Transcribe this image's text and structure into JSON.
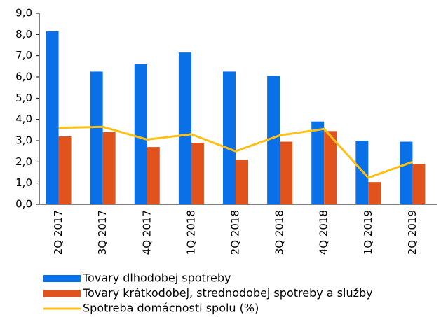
{
  "chart_data": {
    "type": "bar",
    "categories": [
      "2Q 2017",
      "3Q 2017",
      "4Q 2017",
      "1Q 2018",
      "2Q 2018",
      "3Q 2018",
      "4Q 2018",
      "1Q 2019",
      "2Q 2019"
    ],
    "series": [
      {
        "name": "Tovary dlhodobej spotreby",
        "color": "#0a70e8",
        "type": "bar",
        "values": [
          8.15,
          6.25,
          6.6,
          7.15,
          6.25,
          6.05,
          3.9,
          3.0,
          2.95
        ]
      },
      {
        "name": "Tovary krátkodobej, strednodobej spotreby a služby",
        "color": "#e0531c",
        "type": "bar",
        "values": [
          3.2,
          3.4,
          2.7,
          2.9,
          2.1,
          2.95,
          3.45,
          1.05,
          1.9
        ]
      },
      {
        "name": "Spotreba domácnosti spolu (%)",
        "color": "#ffc015",
        "type": "line",
        "values": [
          3.6,
          3.65,
          3.05,
          3.3,
          2.5,
          3.25,
          3.55,
          1.25,
          2.0
        ]
      }
    ],
    "ylim": [
      0,
      9
    ],
    "yticks": [
      {
        "value": 0,
        "label": "0,0"
      },
      {
        "value": 1,
        "label": "1,0"
      },
      {
        "value": 2,
        "label": "2,0"
      },
      {
        "value": 3,
        "label": "3,0"
      },
      {
        "value": 4,
        "label": "4,0"
      },
      {
        "value": 5,
        "label": "5,0"
      },
      {
        "value": 6,
        "label": "6,0"
      },
      {
        "value": 7,
        "label": "7,0"
      },
      {
        "value": 8,
        "label": "8,0"
      },
      {
        "value": 9,
        "label": "9,0"
      }
    ],
    "legend": "bottom-left"
  }
}
